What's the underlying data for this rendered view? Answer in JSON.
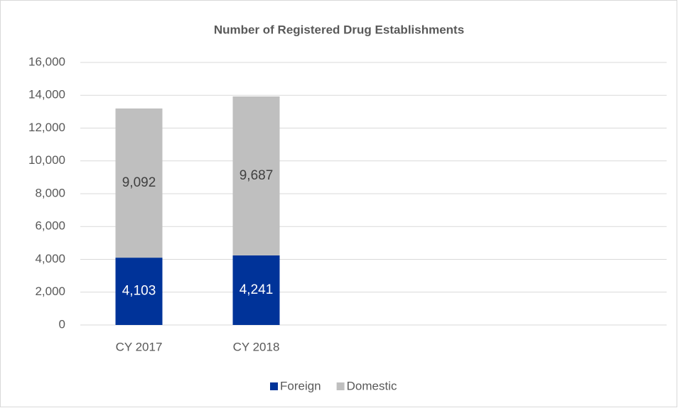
{
  "chart_data": {
    "type": "stacked_bar",
    "title": "Number of Registered Drug Establishments",
    "categories": [
      "CY 2017",
      "CY 2018",
      null,
      null,
      null
    ],
    "series": [
      {
        "name": "Foreign",
        "color": "#003399",
        "values": [
          4103,
          4241,
          null,
          null,
          null
        ],
        "value_labels": [
          "4,103",
          "4,241",
          null,
          null,
          null
        ]
      },
      {
        "name": "Domestic",
        "color": "#bfbfbf",
        "values": [
          9092,
          9687,
          null,
          null,
          null
        ],
        "value_labels": [
          "9,092",
          "9,687",
          null,
          null,
          null
        ]
      }
    ],
    "ylim": [
      0,
      16000
    ],
    "yticks": [
      0,
      {
        "value": 2000,
        "label": "2,000"
      },
      {
        "value": 4000,
        "label": "4,000"
      },
      {
        "value": 6000,
        "label": "6,000"
      },
      {
        "value": 8000,
        "label": "8,000"
      },
      {
        "value": 10000,
        "label": "10,000"
      },
      {
        "value": 12000,
        "label": "12,000"
      },
      {
        "value": 14000,
        "label": "14,000"
      },
      {
        "value": 16000,
        "label": "16,000"
      }
    ],
    "grid": true,
    "legend": "bottom"
  }
}
